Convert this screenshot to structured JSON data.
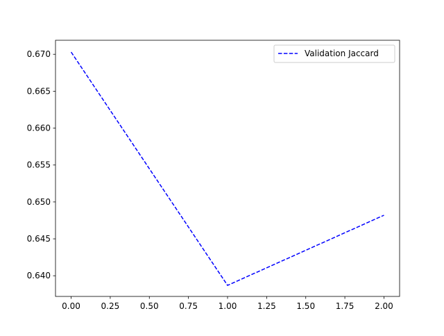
{
  "chart_data": {
    "type": "line",
    "title": "",
    "xlabel": "",
    "ylabel": "",
    "x": [
      0,
      1,
      2
    ],
    "series": [
      {
        "name": "Validation Jaccard",
        "values": [
          0.6703,
          0.6387,
          0.6482
        ],
        "color": "#0000ff",
        "line_style": "dashed"
      }
    ],
    "xlim": [
      -0.1,
      2.1
    ],
    "ylim": [
      0.6372,
      0.6719
    ],
    "xticks": [
      0.0,
      0.25,
      0.5,
      0.75,
      1.0,
      1.25,
      1.5,
      1.75,
      2.0
    ],
    "xtick_labels": [
      "0.00",
      "0.25",
      "0.50",
      "0.75",
      "1.00",
      "1.25",
      "1.50",
      "1.75",
      "2.00"
    ],
    "yticks": [
      0.64,
      0.645,
      0.65,
      0.655,
      0.66,
      0.665,
      0.67
    ],
    "ytick_labels": [
      "0.640",
      "0.645",
      "0.650",
      "0.655",
      "0.660",
      "0.665",
      "0.670"
    ],
    "grid": false,
    "legend_position": "top-right"
  }
}
